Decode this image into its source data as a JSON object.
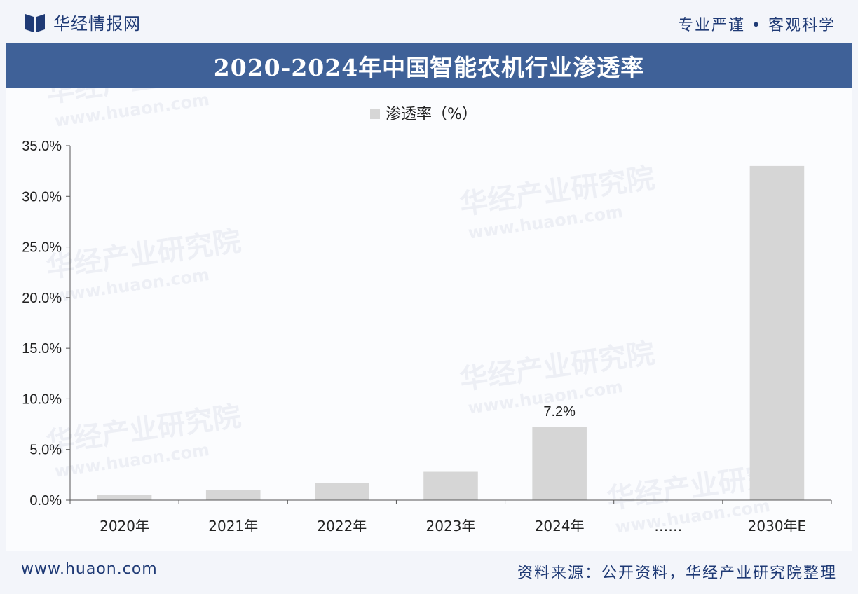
{
  "header": {
    "brand": "华经情报网",
    "slogan": "专业严谨 • 客观科学",
    "title": "2020-2024年中国智能农机行业渗透率"
  },
  "footer": {
    "url": "www.huaon.com",
    "source": "资料来源：公开资料，华经产业研究院整理"
  },
  "watermark": {
    "name": "华经产业研究院",
    "url": "www.huaon.com"
  },
  "colors": {
    "title_band": "#3f6198",
    "bar": "#d6d6d6",
    "brand": "#1f3a75"
  },
  "chart_data": {
    "type": "bar",
    "legend": [
      "渗透率（%）"
    ],
    "categories": [
      "2020年",
      "2021年",
      "2022年",
      "2023年",
      "2024年",
      "……",
      "2030年E"
    ],
    "values": [
      0.5,
      1.0,
      1.7,
      2.8,
      7.2,
      null,
      33.0
    ],
    "data_labels": {
      "2024年": "7.2%"
    },
    "y_ticks": [
      "0.0%",
      "5.0%",
      "10.0%",
      "15.0%",
      "20.0%",
      "25.0%",
      "30.0%",
      "35.0%"
    ],
    "ylim": [
      0,
      35
    ],
    "grid": false,
    "legend_position": "top-center"
  }
}
